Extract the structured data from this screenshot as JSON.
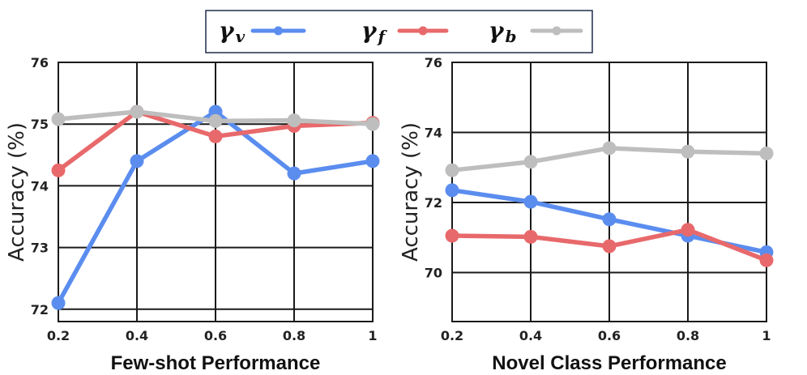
{
  "legend": {
    "items": [
      {
        "symbol": "γ",
        "sub": "v",
        "sub_italic": false,
        "color": "#5b8def"
      },
      {
        "symbol": "γ",
        "sub": "f",
        "sub_italic": false,
        "color": "#e8696b"
      },
      {
        "symbol": "γ",
        "sub": "b",
        "sub_italic": true,
        "color": "#bebebe"
      }
    ]
  },
  "chart_data": [
    {
      "type": "line",
      "xlabel": "Few-shot Performance",
      "ylabel": "Accuracy (%)",
      "categories": [
        "0.2",
        "0.4",
        "0.6",
        "0.8",
        "1"
      ],
      "yticks": [
        "72",
        "73",
        "74",
        "75",
        "76"
      ],
      "ylim": [
        71.8,
        76
      ],
      "grid": true,
      "series": [
        {
          "name": "γv",
          "color": "#5b8def",
          "values": [
            72.1,
            74.4,
            75.2,
            74.2,
            74.4
          ]
        },
        {
          "name": "γf",
          "color": "#e8696b",
          "values": [
            74.25,
            75.2,
            74.8,
            74.97,
            75.02
          ]
        },
        {
          "name": "γb",
          "color": "#bebebe",
          "values": [
            75.08,
            75.2,
            75.05,
            75.06,
            75.0
          ]
        }
      ]
    },
    {
      "type": "line",
      "xlabel": "Novel Class Performance",
      "ylabel": "Accuracy (%)",
      "categories": [
        "0.2",
        "0.4",
        "0.6",
        "0.8",
        "1"
      ],
      "yticks": [
        "70",
        "72",
        "74",
        "76"
      ],
      "ylim": [
        68.6,
        76
      ],
      "grid": true,
      "series": [
        {
          "name": "γv",
          "color": "#5b8def",
          "values": [
            72.35,
            72.02,
            71.52,
            71.05,
            70.58
          ]
        },
        {
          "name": "γf",
          "color": "#e8696b",
          "values": [
            71.05,
            71.02,
            70.75,
            71.22,
            70.35
          ]
        },
        {
          "name": "γb",
          "color": "#bebebe",
          "values": [
            72.92,
            73.16,
            73.55,
            73.45,
            73.4
          ]
        }
      ]
    }
  ]
}
